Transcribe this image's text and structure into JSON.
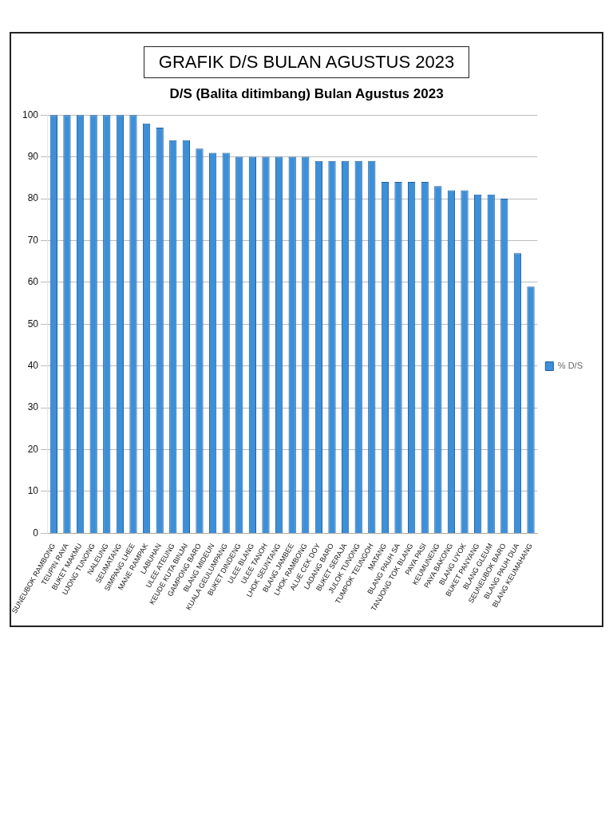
{
  "chart_data": {
    "type": "bar",
    "title": "GRAFIK D/S BULAN AGUSTUS 2023",
    "subtitle": "D/S (Balita ditimbang) Bulan Agustus 2023",
    "categories": [
      "SUNEUBOK RAMBONG",
      "TEUPIN RAYA",
      "BUKET MAKMU",
      "UJONG TUNONG",
      "NALEUNG",
      "SEUMATANG",
      "SIMPANG LHEE",
      "MANE RAMPAK",
      "LABUHAN",
      "ULEE ATEUNG",
      "KEUDE KUTA BINJAI",
      "GAMPONG BARO",
      "BLANG MIDEUN",
      "KUALA GEULUMPANG",
      "BUKET DINDENG",
      "ULEE BLANG",
      "ULEE TANOH",
      "LHOK SEUNTANG",
      "BLANG JAMBEE",
      "LHOK RAMBONG",
      "ALUE CEK DOY",
      "LADANG BARO",
      "BUKET SERAJA",
      "JULOK TUNONG",
      "TUMPOK TEUNGOH",
      "MATANG",
      "BLANG PAUH SA",
      "TANJONG TOK BLANG",
      "PAYA PASI",
      "KEUMUNENG",
      "PAYA BAKONG",
      "BLANG UYOK",
      "BUKET PANYANG",
      "BLANG GLEUM",
      "SEUNEUBOK BARO",
      "BLANG PAUH DUA",
      "BLANG KEUMAHANG"
    ],
    "series": [
      {
        "name": "% D/S",
        "color": "#3d8fd8",
        "values": [
          100,
          100,
          100,
          100,
          100,
          100,
          100,
          98,
          97,
          94,
          94,
          92,
          91,
          91,
          90,
          90,
          90,
          90,
          90,
          90,
          89,
          89,
          89,
          89,
          89,
          84,
          84,
          84,
          84,
          83,
          82,
          82,
          81,
          81,
          80,
          67,
          59
        ]
      }
    ],
    "ylim": [
      0,
      100
    ],
    "yticks": [
      0,
      10,
      20,
      30,
      40,
      50,
      60,
      70,
      80,
      90,
      100
    ],
    "grid": "y",
    "legend": "right"
  }
}
